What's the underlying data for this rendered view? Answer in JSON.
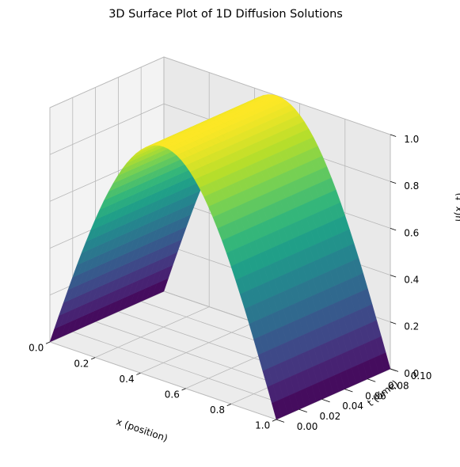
{
  "chart_data": {
    "type": "surface",
    "title": "3D Surface Plot of 1D Diffusion Solutions",
    "xlabel": "x (position)",
    "ylabel": "t (time)",
    "zlabel": "u(x, t)",
    "xlim": [
      0,
      1
    ],
    "ylim": [
      0,
      0.1
    ],
    "zlim": [
      0,
      1
    ],
    "x_ticks": [
      "0.0",
      "0.2",
      "0.4",
      "0.6",
      "0.8",
      "1.0"
    ],
    "y_ticks": [
      "0.00",
      "0.02",
      "0.04",
      "0.06",
      "0.08",
      "0.10"
    ],
    "z_ticks": [
      "0.0",
      "0.2",
      "0.4",
      "0.6",
      "0.8",
      "1.0"
    ],
    "function": "sin(pi*x)",
    "colormap": "viridis",
    "grid": true
  }
}
